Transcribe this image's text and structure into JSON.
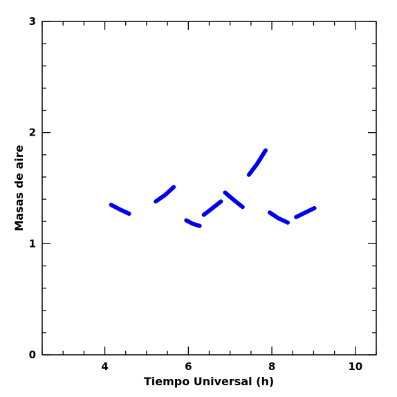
{
  "chart_data": {
    "type": "line",
    "xlabel": "Tiempo Universal (h)",
    "ylabel": "Masas de aire",
    "xlim": [
      2.5,
      10.5
    ],
    "ylim": [
      0,
      3
    ],
    "x_ticks": [
      4,
      6,
      8,
      10
    ],
    "x_tick_labels": [
      "4",
      "6",
      "8",
      "10"
    ],
    "y_ticks": [
      0,
      1,
      2,
      3
    ],
    "y_tick_labels": [
      "0",
      "1",
      "2",
      "3"
    ],
    "x_minor_step": 0.5,
    "y_minor_step": 0.2,
    "series_color": "#0000ee",
    "segments": [
      [
        [
          4.15,
          1.35
        ],
        [
          4.35,
          1.31
        ],
        [
          4.58,
          1.27
        ]
      ],
      [
        [
          5.22,
          1.38
        ],
        [
          5.45,
          1.44
        ],
        [
          5.65,
          1.51
        ]
      ],
      [
        [
          5.95,
          1.21
        ],
        [
          6.1,
          1.18
        ],
        [
          6.27,
          1.16
        ]
      ],
      [
        [
          6.37,
          1.26
        ],
        [
          6.58,
          1.32
        ],
        [
          6.78,
          1.38
        ]
      ],
      [
        [
          6.88,
          1.46
        ],
        [
          7.1,
          1.39
        ],
        [
          7.3,
          1.33
        ]
      ],
      [
        [
          7.45,
          1.62
        ],
        [
          7.65,
          1.72
        ],
        [
          7.85,
          1.84
        ]
      ],
      [
        [
          7.95,
          1.28
        ],
        [
          8.15,
          1.23
        ],
        [
          8.38,
          1.19
        ]
      ],
      [
        [
          8.58,
          1.24
        ],
        [
          8.8,
          1.28
        ],
        [
          9.02,
          1.32
        ]
      ]
    ]
  }
}
